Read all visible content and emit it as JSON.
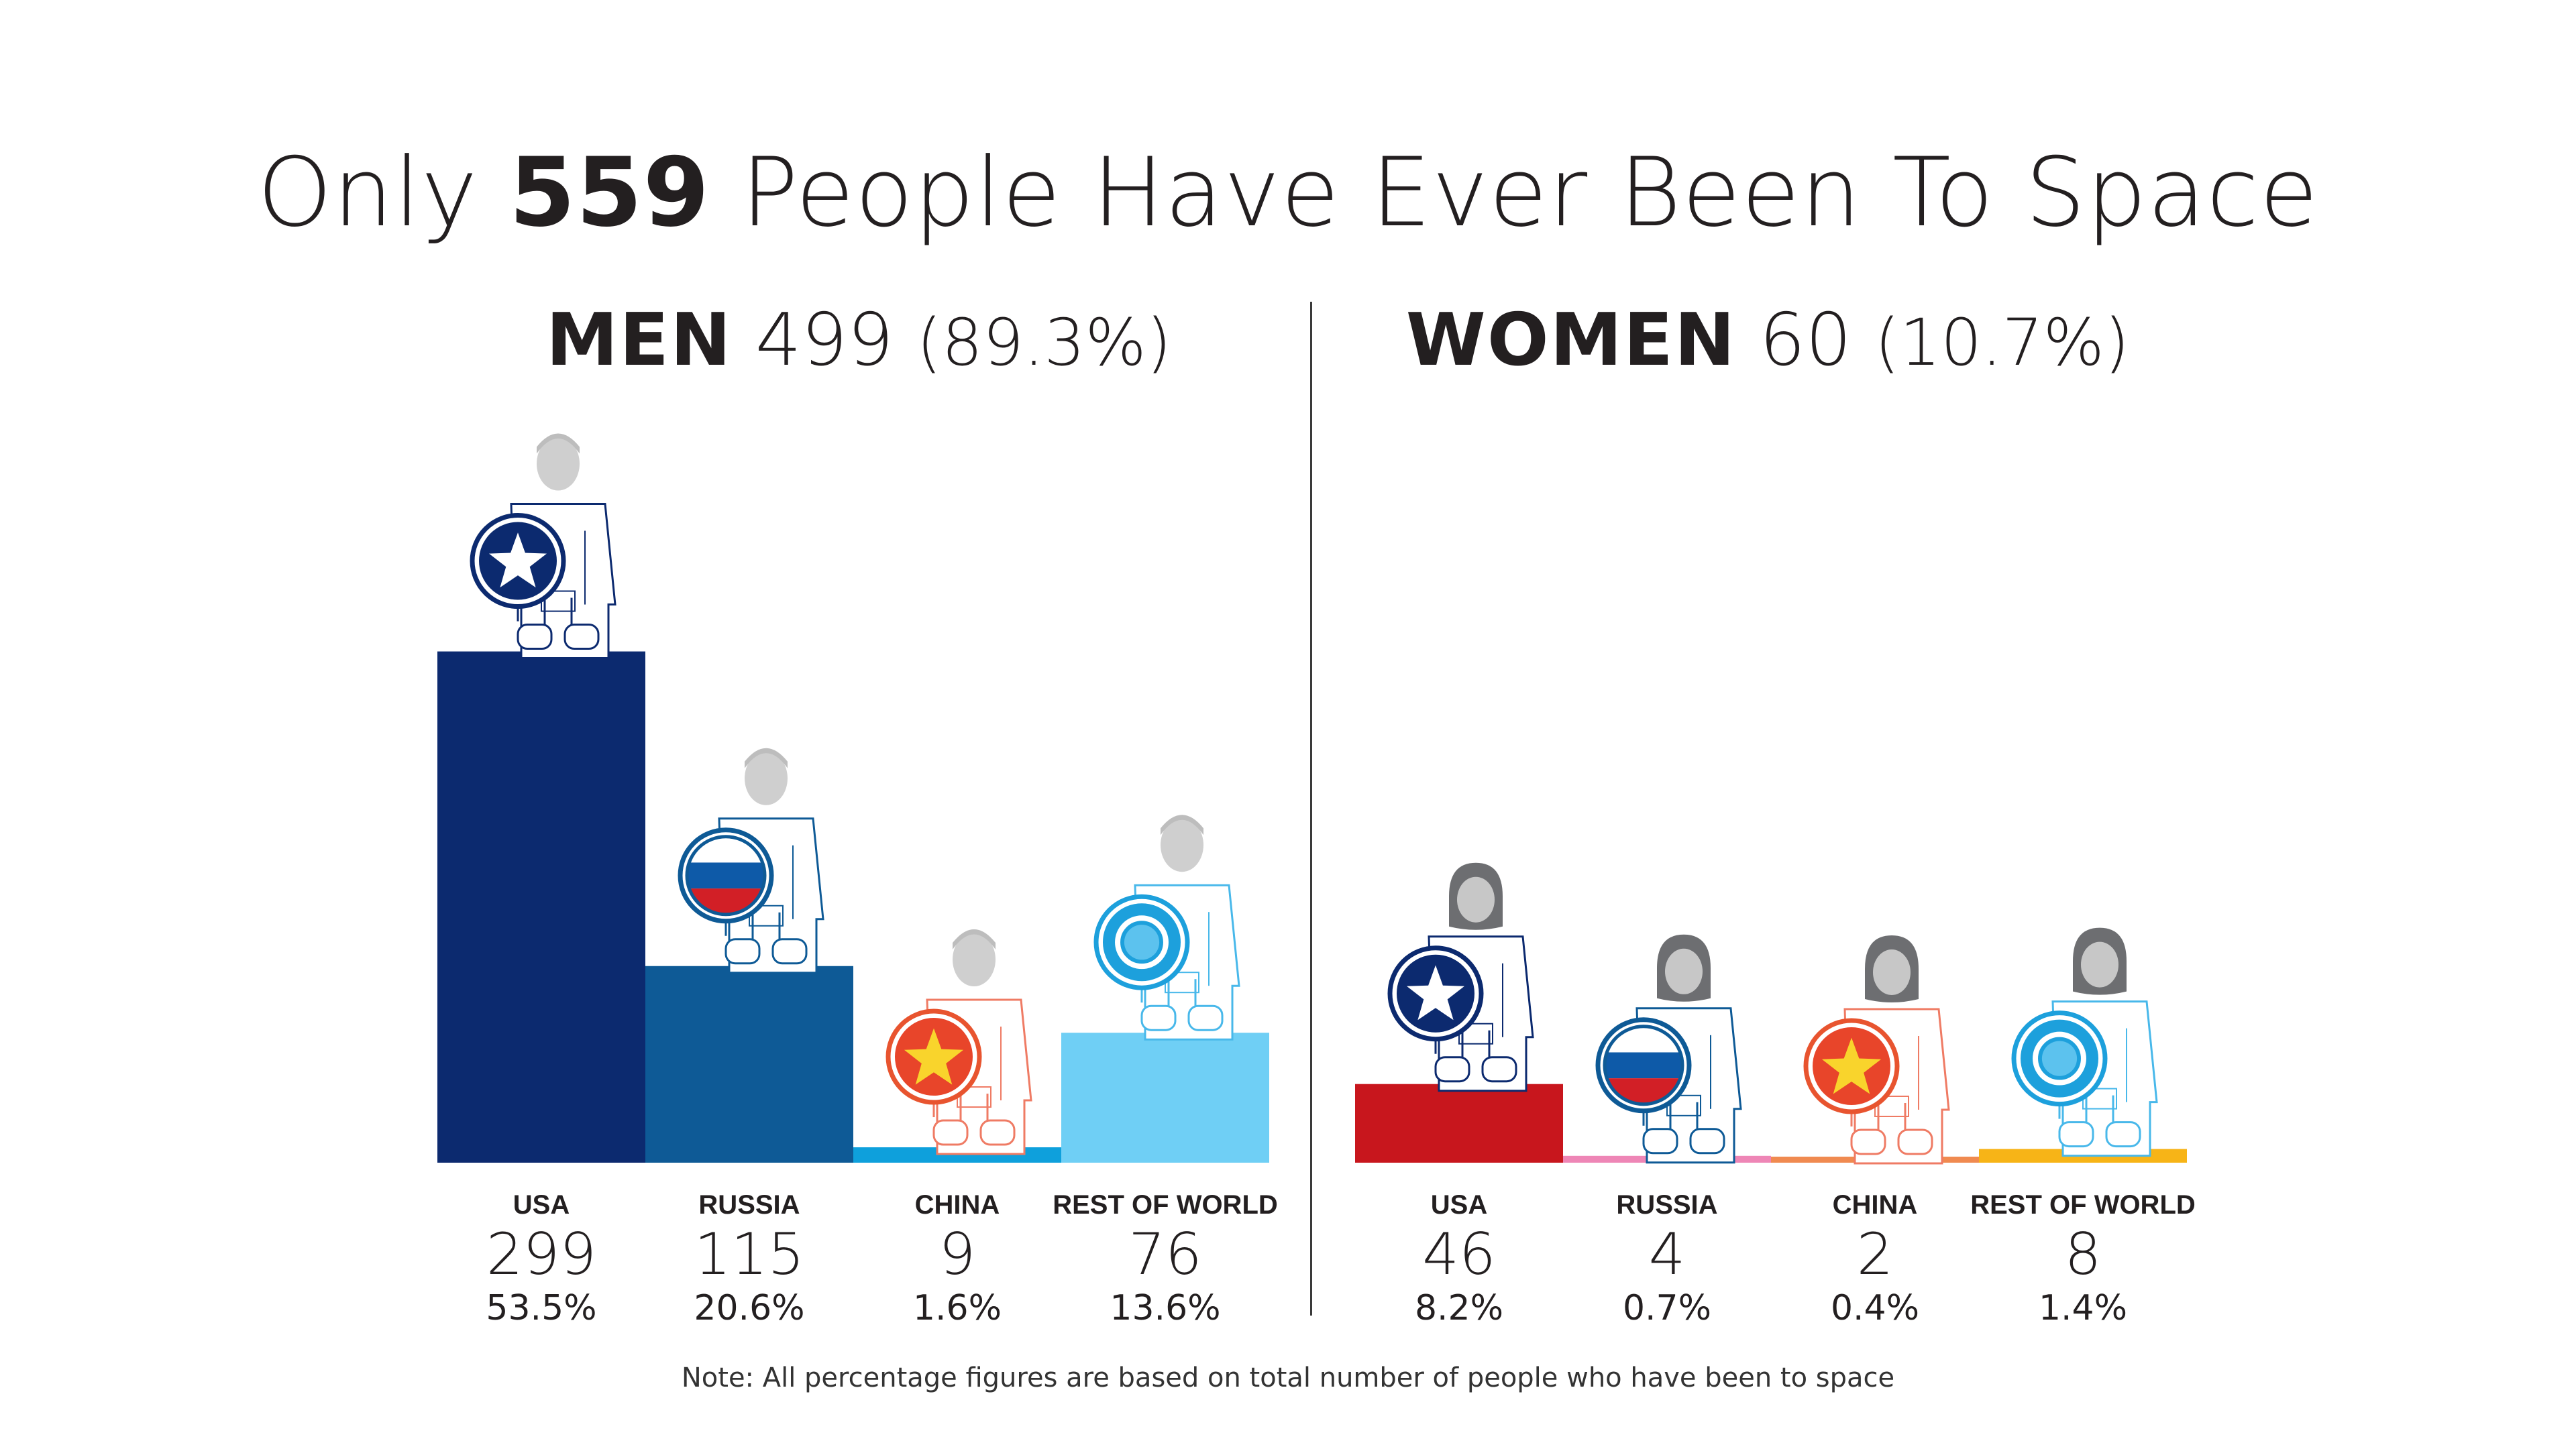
{
  "title": {
    "prefix": "Only ",
    "number": "559",
    "suffix": " People Have Ever Been To Space"
  },
  "note": "Note: All percentage figures are based on total number of people who have been to space",
  "chart_data": [
    {
      "type": "bar",
      "heading": {
        "label": "MEN",
        "count": "499",
        "percent": "(89.3%)"
      },
      "categories": [
        "USA",
        "RUSSIA",
        "CHINA",
        "REST OF WORLD"
      ],
      "values": [
        299,
        115,
        9,
        76
      ],
      "value_labels": [
        "299",
        "115",
        "9",
        "76"
      ],
      "percent_labels": [
        "53.5%",
        "20.6%",
        "1.6%",
        "13.6%"
      ],
      "colors": [
        "#0c2a6f",
        "#0e5a96",
        "#0ea0dc",
        "#6fcff5"
      ],
      "emblems": [
        "usa-star",
        "russia-flag",
        "china-star",
        "world-ring"
      ],
      "figure": "male-astronaut-icon"
    },
    {
      "type": "bar",
      "heading": {
        "label": "WOMEN",
        "count": "60",
        "percent": "(10.7%)"
      },
      "categories": [
        "USA",
        "RUSSIA",
        "CHINA",
        "REST OF WORLD"
      ],
      "values": [
        46,
        4,
        2,
        8
      ],
      "value_labels": [
        "46",
        "4",
        "2",
        "8"
      ],
      "percent_labels": [
        "8.2%",
        "0.7%",
        "0.4%",
        "1.4%"
      ],
      "colors": [
        "#c8161d",
        "#ee86b6",
        "#f08a50",
        "#f7b417"
      ],
      "emblems": [
        "usa-star",
        "russia-flag",
        "china-star",
        "world-ring"
      ],
      "figure": "female-astronaut-icon"
    }
  ]
}
